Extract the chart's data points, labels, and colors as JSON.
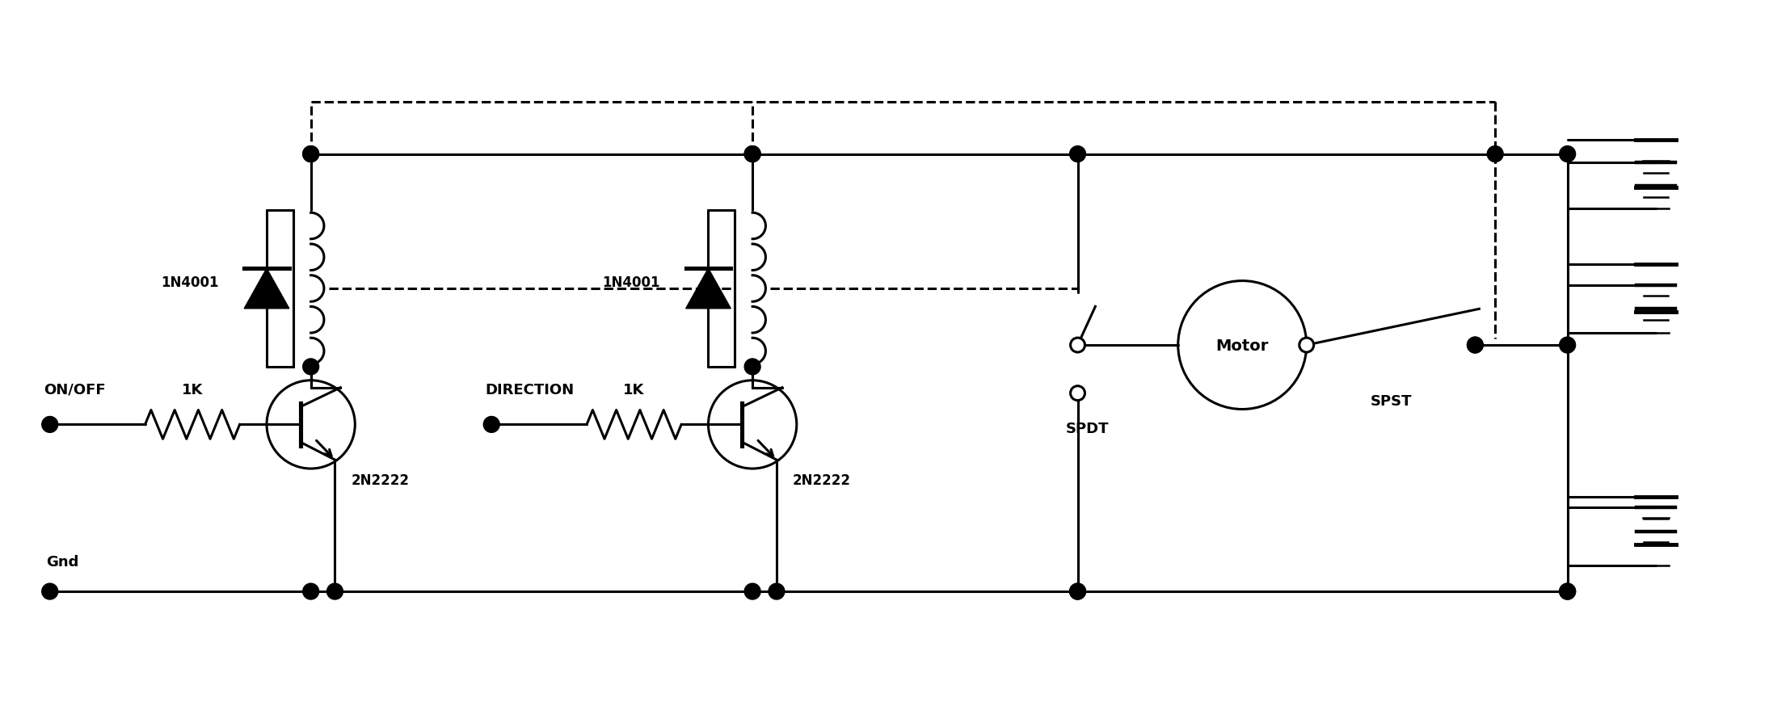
{
  "bg_color": "#ffffff",
  "line_color": "#000000",
  "lw": 2.2,
  "fig_w": 22.15,
  "fig_h": 8.7,
  "xlim": [
    0,
    22.15
  ],
  "ylim": [
    0,
    8.7
  ],
  "labels": {
    "onoff": "ON/OFF",
    "r1": "1K",
    "t1": "2N2222",
    "d1": "1N4001",
    "direction": "DIRECTION",
    "r2": "1K",
    "t2": "2N2222",
    "d2": "1N4001",
    "motor": "Motor",
    "spdt": "SPDT",
    "spst": "SPST",
    "gnd": "Gnd"
  },
  "fontsize": 13
}
